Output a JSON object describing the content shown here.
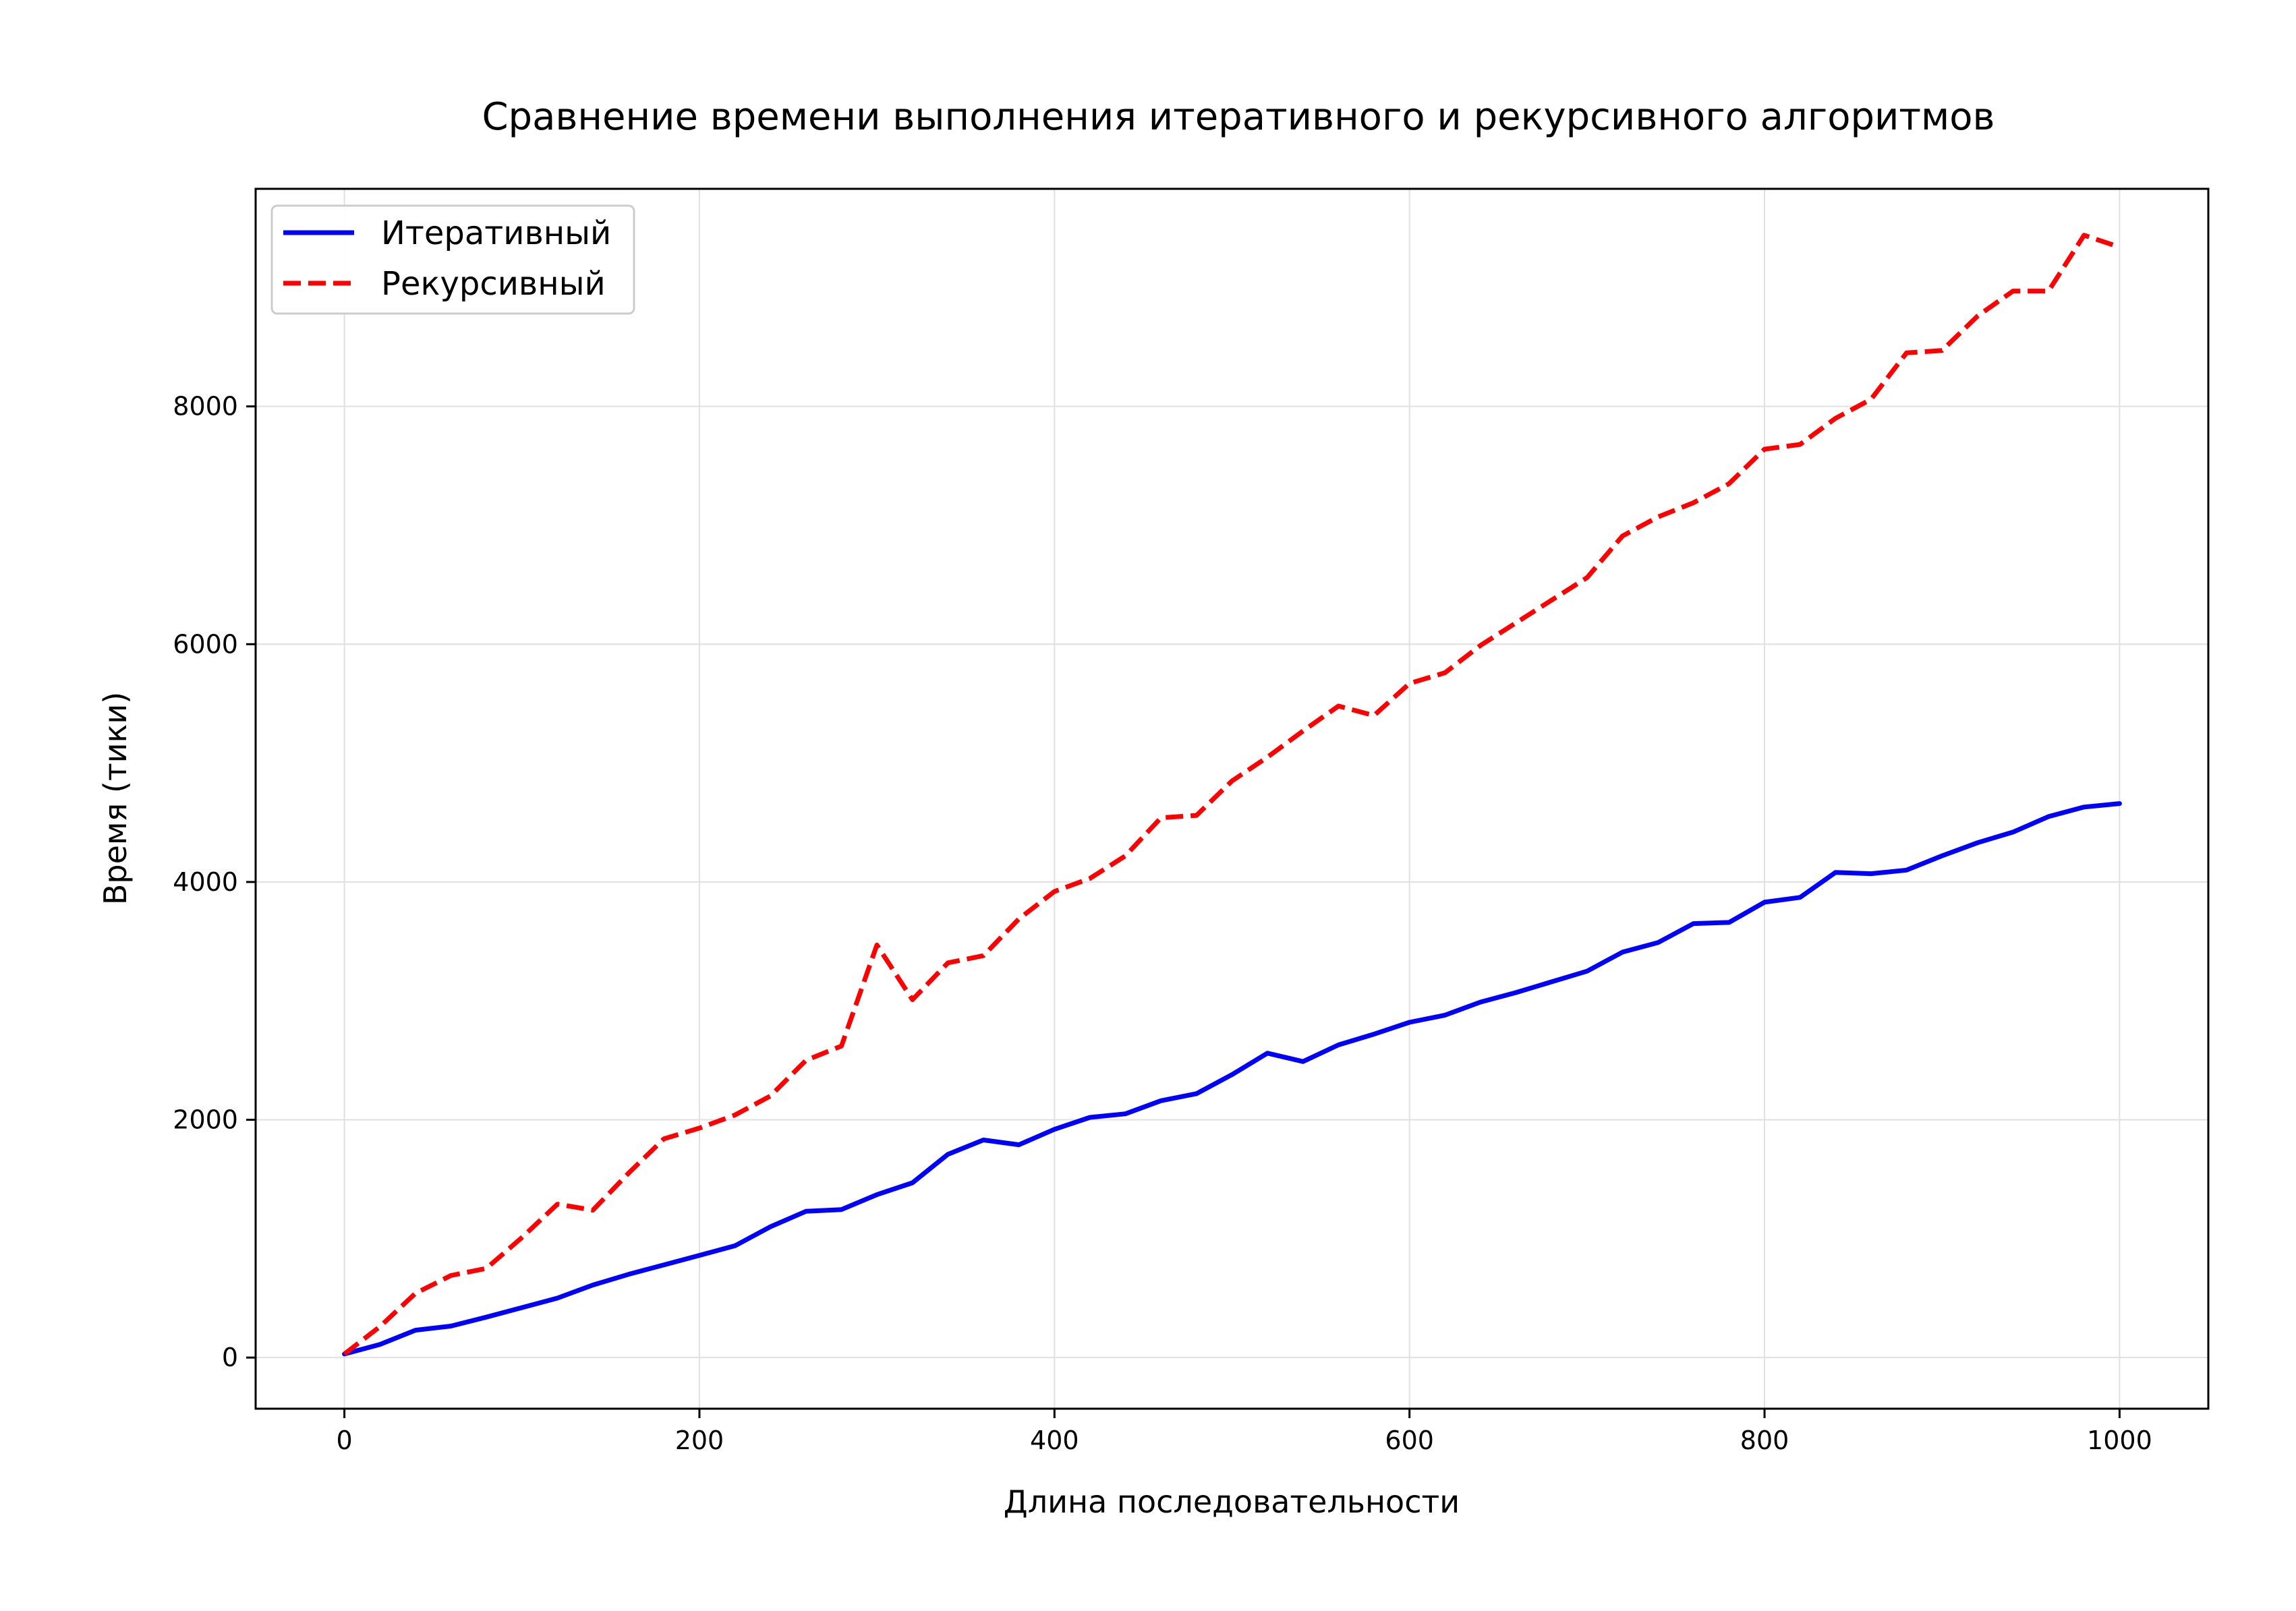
{
  "chart_data": {
    "type": "line",
    "title": "Сравнение времени выполнения итеративного и рекурсивного алгоритмов",
    "xlabel": "Длина последовательности",
    "ylabel": "Время (тики)",
    "xlim": [
      -50,
      1050
    ],
    "ylim": [
      -430,
      9830
    ],
    "xticks": [
      0,
      200,
      400,
      600,
      800,
      1000
    ],
    "yticks": [
      0,
      2000,
      4000,
      6000,
      8000
    ],
    "grid": true,
    "legend_position": "top-left",
    "x": [
      0,
      20,
      40,
      60,
      80,
      100,
      120,
      140,
      160,
      180,
      200,
      220,
      240,
      260,
      280,
      300,
      320,
      340,
      360,
      380,
      400,
      420,
      440,
      460,
      480,
      500,
      520,
      540,
      560,
      580,
      600,
      620,
      640,
      660,
      680,
      700,
      720,
      740,
      760,
      780,
      800,
      820,
      840,
      860,
      880,
      900,
      920,
      940,
      960,
      980,
      1000
    ],
    "series": [
      {
        "name": "Итеративный",
        "color": "#0000ff",
        "line_style": "solid",
        "values": [
          30,
          110,
          230,
          265,
          340,
          420,
          500,
          610,
          700,
          780,
          860,
          940,
          1100,
          1230,
          1245,
          1370,
          1470,
          1710,
          1830,
          1790,
          1920,
          2020,
          2050,
          2160,
          2220,
          2380,
          2560,
          2490,
          2630,
          2720,
          2820,
          2880,
          2990,
          3070,
          3160,
          3250,
          3410,
          3490,
          3650,
          3660,
          3830,
          3870,
          4080,
          4070,
          4100,
          4220,
          4330,
          4420,
          4550,
          4630,
          4660
        ]
      },
      {
        "name": "Рекурсивный",
        "color": "#ff0000",
        "line_style": "dashed",
        "values": [
          30,
          260,
          540,
          690,
          750,
          1010,
          1290,
          1240,
          1550,
          1840,
          1930,
          2040,
          2200,
          2500,
          2620,
          3470,
          3010,
          3320,
          3380,
          3690,
          3920,
          4030,
          4220,
          4540,
          4560,
          4850,
          5050,
          5270,
          5480,
          5400,
          5670,
          5760,
          5990,
          6180,
          6370,
          6560,
          6910,
          7070,
          7190,
          7350,
          7640,
          7680,
          7900,
          8060,
          8450,
          8470,
          8760,
          8970,
          8970,
          9440,
          9340
        ]
      }
    ]
  }
}
